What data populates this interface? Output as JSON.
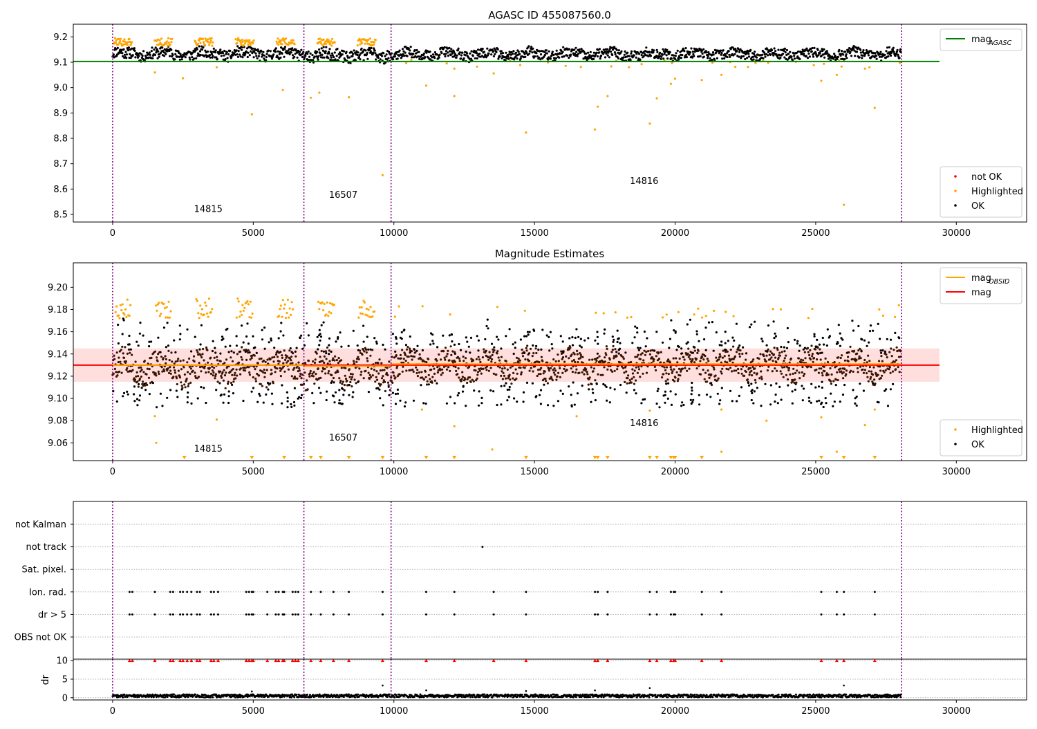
{
  "chart_data": [
    {
      "type": "scatter",
      "title": "AGASC ID 455087560.0",
      "xlabel": "",
      "ylabel": "",
      "xlim": [
        -1400,
        32500
      ],
      "ylim": [
        8.47,
        9.25
      ],
      "xticks": [
        0,
        5000,
        10000,
        15000,
        20000,
        25000,
        30000
      ],
      "yticks": [
        8.5,
        8.6,
        8.7,
        8.8,
        8.9,
        9.0,
        9.1,
        9.2
      ],
      "ytick_labels": [
        "8.5",
        "8.6",
        "8.7",
        "8.8",
        "8.9",
        "9.0",
        "9.1",
        "9.2"
      ],
      "obsid_boundaries": [
        0,
        6800,
        9900,
        28050
      ],
      "obsid_labels": [
        {
          "text": "14815",
          "x": 3400,
          "y": 8.51
        },
        {
          "text": "16507",
          "x": 8200,
          "y": 8.565
        },
        {
          "text": "14816",
          "x": 18900,
          "y": 8.62
        }
      ],
      "lines": [
        {
          "name": "mag",
          "sub": "AGASC",
          "color": "#008000",
          "y": 9.103,
          "x": [
            -1400,
            29400
          ]
        }
      ],
      "black_band": {
        "segments": [
          {
            "x0": 0,
            "x1": 6800,
            "center": 9.134,
            "half": 0.022,
            "seed": 11
          },
          {
            "x0": 6800,
            "x1": 9900,
            "center": 9.128,
            "half": 0.024,
            "seed": 23
          },
          {
            "x0": 9900,
            "x1": 28050,
            "center": 9.132,
            "half": 0.02,
            "seed": 37
          }
        ]
      },
      "highlighted_points": [
        [
          1500,
          9.06
        ],
        [
          2500,
          9.037
        ],
        [
          3700,
          9.08
        ],
        [
          4950,
          8.895
        ],
        [
          6050,
          8.99
        ],
        [
          7050,
          8.96
        ],
        [
          7350,
          8.98
        ],
        [
          8400,
          8.962
        ],
        [
          9600,
          8.655
        ],
        [
          11150,
          9.008
        ],
        [
          12150,
          8.967
        ],
        [
          12150,
          9.075
        ],
        [
          13550,
          9.056
        ],
        [
          14700,
          8.823
        ],
        [
          17250,
          8.925
        ],
        [
          17150,
          8.835
        ],
        [
          17600,
          8.967
        ],
        [
          19100,
          8.858
        ],
        [
          19350,
          8.958
        ],
        [
          19850,
          9.015
        ],
        [
          20000,
          9.035
        ],
        [
          20950,
          9.03
        ],
        [
          21650,
          9.05
        ],
        [
          25200,
          9.027
        ],
        [
          25750,
          9.05
        ],
        [
          26000,
          8.538
        ],
        [
          26750,
          9.075
        ],
        [
          27100,
          8.92
        ]
      ],
      "highlighted_top_fringe": true,
      "legends": [
        {
          "position": "upper-right",
          "entries": [
            {
              "label": "mag",
              "sub": "AGASC",
              "kind": "line",
              "color": "#008000"
            }
          ]
        },
        {
          "position": "lower-right",
          "entries": [
            {
              "label": "not OK",
              "kind": "dot",
              "color": "#ff0000"
            },
            {
              "label": "Highlighted",
              "kind": "dot",
              "color": "#ffa500"
            },
            {
              "label": "OK",
              "kind": "dot",
              "color": "#000000"
            }
          ]
        }
      ]
    },
    {
      "type": "scatter",
      "title": "Magnitude Estimates",
      "xlabel": "",
      "ylabel": "",
      "xlim": [
        -1400,
        32500
      ],
      "ylim": [
        9.044,
        9.222
      ],
      "xticks": [
        0,
        5000,
        10000,
        15000,
        20000,
        25000,
        30000
      ],
      "yticks": [
        9.06,
        9.08,
        9.1,
        9.12,
        9.14,
        9.16,
        9.18,
        9.2
      ],
      "ytick_labels": [
        "9.06",
        "9.08",
        "9.10",
        "9.12",
        "9.14",
        "9.16",
        "9.18",
        "9.20"
      ],
      "obsid_boundaries": [
        0,
        6800,
        9900,
        28050
      ],
      "obsid_labels": [
        {
          "text": "14815",
          "x": 3400,
          "y": 9.052
        },
        {
          "text": "16507",
          "x": 8200,
          "y": 9.062
        },
        {
          "text": "14816",
          "x": 18900,
          "y": 9.075
        }
      ],
      "bands": [
        {
          "x": [
            -1400,
            29400
          ],
          "y0": 9.115,
          "y1": 9.145,
          "color": "#ffcccc"
        }
      ],
      "lines": [
        {
          "name": "mag",
          "color": "#ff0000",
          "y": 9.13,
          "x": [
            -1400,
            29400
          ]
        },
        {
          "name": "mag",
          "sub": "OBSID",
          "color": "#ffa500",
          "segments": [
            [
              0,
              6800,
              9.13
            ],
            [
              6800,
              9900,
              9.129
            ],
            [
              9900,
              28050,
              9.131
            ]
          ]
        }
      ],
      "dark_band": {
        "segments": [
          {
            "x0": 0,
            "x1": 6800,
            "center": 9.128,
            "half": 0.013,
            "seed": 5
          },
          {
            "x0": 6800,
            "x1": 9900,
            "center": 9.126,
            "half": 0.014,
            "seed": 7
          },
          {
            "x0": 9900,
            "x1": 28050,
            "center": 9.13,
            "half": 0.012,
            "seed": 9
          }
        ]
      },
      "spread": {
        "low": 9.092,
        "high": 9.172
      },
      "highlighted_points": [
        [
          1500,
          9.084
        ],
        [
          1550,
          9.06
        ],
        [
          3700,
          9.081
        ],
        [
          11000,
          9.09
        ],
        [
          12150,
          9.075
        ],
        [
          13500,
          9.054
        ],
        [
          16500,
          9.084
        ],
        [
          19100,
          9.089
        ],
        [
          21650,
          9.052
        ],
        [
          21650,
          9.09
        ],
        [
          23250,
          9.08
        ],
        [
          25200,
          9.083
        ],
        [
          25750,
          9.052
        ],
        [
          26750,
          9.076
        ],
        [
          27100,
          9.09
        ]
      ],
      "triangles_x": [
        2550,
        4950,
        6100,
        7050,
        7400,
        8400,
        9600,
        11150,
        12150,
        14700,
        17150,
        17250,
        17600,
        19100,
        19350,
        19850,
        19950,
        20000,
        20950,
        25200,
        26000,
        27100
      ],
      "legends": [
        {
          "position": "upper-right",
          "entries": [
            {
              "label": "mag",
              "sub": "OBSID",
              "kind": "line",
              "color": "#ffa500"
            },
            {
              "label": "mag",
              "kind": "line",
              "color": "#ff0000"
            }
          ]
        },
        {
          "position": "lower-right",
          "entries": [
            {
              "label": "Highlighted",
              "kind": "dot",
              "color": "#ffa500"
            },
            {
              "label": "OK",
              "kind": "dot",
              "color": "#000000"
            }
          ]
        }
      ]
    },
    {
      "type": "scatter",
      "title": "",
      "xlabel": "",
      "ylabel": "",
      "xlim": [
        -1400,
        32500
      ],
      "categories": [
        "not Kalman",
        "not track",
        "Sat. pixel.",
        "Ion. rad.",
        "dr > 5",
        "OBS not OK"
      ],
      "obsid_boundaries": [
        0,
        6800,
        9900,
        28050
      ],
      "flag_points": {
        "not Kalman": [],
        "not track": [
          13150
        ],
        "Sat. pixel.": [],
        "Ion. rad.": [
          600,
          700,
          1500,
          2050,
          2150,
          2400,
          2500,
          2650,
          2800,
          3000,
          3100,
          3500,
          3600,
          3750,
          4750,
          4850,
          4950,
          5000,
          5500,
          5800,
          5900,
          6050,
          6100,
          6400,
          6500,
          6600,
          7050,
          7400,
          7850,
          8400,
          9600,
          11150,
          12150,
          13550,
          14700,
          17150,
          17250,
          17600,
          19100,
          19350,
          19850,
          19950,
          20000,
          20950,
          21650,
          25200,
          25750,
          26000,
          27100
        ],
        "dr > 5": [
          600,
          700,
          1500,
          2050,
          2150,
          2400,
          2500,
          2650,
          2800,
          3000,
          3100,
          3500,
          3600,
          3750,
          4750,
          4850,
          4950,
          5000,
          5500,
          5800,
          5900,
          6050,
          6100,
          6400,
          6500,
          6600,
          7050,
          7400,
          7850,
          8400,
          9600,
          11150,
          12150,
          13550,
          14700,
          17150,
          17250,
          17600,
          19100,
          19350,
          19850,
          19950,
          20000,
          20950,
          21650,
          25200,
          25750,
          26000,
          27100
        ],
        "OBS not OK": []
      }
    },
    {
      "type": "scatter",
      "title": "",
      "xlabel": "",
      "ylabel": "dr",
      "xlim": [
        -1400,
        32500
      ],
      "ylim": [
        -0.6,
        10.4
      ],
      "xticks": [
        0,
        5000,
        10000,
        15000,
        20000,
        25000,
        30000
      ],
      "yticks": [
        0,
        5,
        10
      ],
      "ytick_labels": [
        "0",
        "5",
        "10"
      ],
      "obsid_boundaries": [
        0,
        6800,
        9900,
        28050
      ],
      "clipped_marker_y": 10,
      "clipped_x": [
        600,
        700,
        1500,
        2050,
        2150,
        2400,
        2500,
        2650,
        2800,
        3000,
        3100,
        3500,
        3600,
        3750,
        4750,
        4850,
        4950,
        5000,
        5500,
        5800,
        5900,
        6050,
        6100,
        6400,
        6500,
        6600,
        7050,
        7400,
        7850,
        8400,
        9600,
        11150,
        12150,
        13550,
        14700,
        17150,
        17250,
        17600,
        19100,
        19350,
        19850,
        19950,
        20000,
        20950,
        21650,
        25200,
        25750,
        26000,
        27100
      ],
      "outliers": [
        [
          9600,
          3.3
        ],
        [
          26000,
          3.3
        ],
        [
          19100,
          2.6
        ],
        [
          11150,
          2.0
        ],
        [
          14700,
          1.8
        ],
        [
          17150,
          2.0
        ],
        [
          4950,
          1.7
        ]
      ],
      "base": {
        "low": 0.1,
        "high": 0.9
      }
    }
  ]
}
